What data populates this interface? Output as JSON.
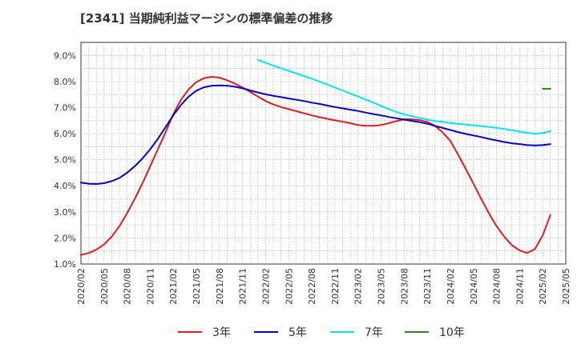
{
  "chart_data": {
    "type": "line",
    "title": "[2341]  当期純利益マージンの標準偏差の推移",
    "xlabel": "",
    "ylabel": "",
    "ylim": [
      1.0,
      9.5
    ],
    "x_ticks": [
      "2020/02",
      "2020/05",
      "2020/08",
      "2020/11",
      "2021/02",
      "2021/05",
      "2021/08",
      "2021/11",
      "2022/02",
      "2022/05",
      "2022/08",
      "2022/11",
      "2023/02",
      "2023/05",
      "2023/08",
      "2023/11",
      "2024/02",
      "2024/05",
      "2024/08",
      "2024/11",
      "2025/02",
      "2025/05"
    ],
    "y_ticks": [
      "1.0%",
      "2.0%",
      "3.0%",
      "4.0%",
      "5.0%",
      "6.0%",
      "7.0%",
      "8.0%",
      "9.0%"
    ],
    "grid": true,
    "legend_position": "bottom",
    "series": [
      {
        "name": "3年",
        "color": "#e41a1c",
        "points": [
          [
            "2020/02",
            1.35
          ],
          [
            "2020/03",
            1.42
          ],
          [
            "2020/04",
            1.55
          ],
          [
            "2020/05",
            1.75
          ],
          [
            "2020/06",
            2.05
          ],
          [
            "2020/07",
            2.45
          ],
          [
            "2020/08",
            2.95
          ],
          [
            "2020/09",
            3.5
          ],
          [
            "2020/10",
            4.1
          ],
          [
            "2020/11",
            4.75
          ],
          [
            "2020/12",
            5.4
          ],
          [
            "2021/01",
            6.05
          ],
          [
            "2021/02",
            6.75
          ],
          [
            "2021/03",
            7.3
          ],
          [
            "2021/04",
            7.7
          ],
          [
            "2021/05",
            7.98
          ],
          [
            "2021/06",
            8.13
          ],
          [
            "2021/07",
            8.18
          ],
          [
            "2021/08",
            8.15
          ],
          [
            "2021/09",
            8.05
          ],
          [
            "2021/10",
            7.92
          ],
          [
            "2021/11",
            7.77
          ],
          [
            "2021/12",
            7.6
          ],
          [
            "2022/01",
            7.42
          ],
          [
            "2022/02",
            7.25
          ],
          [
            "2022/03",
            7.12
          ],
          [
            "2022/04",
            7.02
          ],
          [
            "2022/05",
            6.94
          ],
          [
            "2022/06",
            6.86
          ],
          [
            "2022/07",
            6.78
          ],
          [
            "2022/08",
            6.7
          ],
          [
            "2022/09",
            6.63
          ],
          [
            "2022/10",
            6.57
          ],
          [
            "2022/11",
            6.51
          ],
          [
            "2022/12",
            6.46
          ],
          [
            "2023/01",
            6.4
          ],
          [
            "2023/02",
            6.33
          ],
          [
            "2023/03",
            6.3
          ],
          [
            "2023/04",
            6.3
          ],
          [
            "2023/05",
            6.33
          ],
          [
            "2023/06",
            6.4
          ],
          [
            "2023/07",
            6.48
          ],
          [
            "2023/08",
            6.55
          ],
          [
            "2023/09",
            6.55
          ],
          [
            "2023/10",
            6.52
          ],
          [
            "2023/11",
            6.45
          ],
          [
            "2023/12",
            6.3
          ],
          [
            "2024/01",
            6.05
          ],
          [
            "2024/02",
            5.72
          ],
          [
            "2024/03",
            5.2
          ],
          [
            "2024/04",
            4.65
          ],
          [
            "2024/05",
            4.08
          ],
          [
            "2024/06",
            3.5
          ],
          [
            "2024/07",
            2.95
          ],
          [
            "2024/08",
            2.45
          ],
          [
            "2024/09",
            2.05
          ],
          [
            "2024/10",
            1.72
          ],
          [
            "2024/11",
            1.52
          ],
          [
            "2024/12",
            1.42
          ],
          [
            "2025/01",
            1.58
          ],
          [
            "2025/02",
            2.1
          ],
          [
            "2025/03",
            2.88
          ]
        ]
      },
      {
        "name": "5年",
        "color": "#0000cc",
        "points": [
          [
            "2020/02",
            4.12
          ],
          [
            "2020/03",
            4.08
          ],
          [
            "2020/04",
            4.07
          ],
          [
            "2020/05",
            4.1
          ],
          [
            "2020/06",
            4.18
          ],
          [
            "2020/07",
            4.3
          ],
          [
            "2020/08",
            4.5
          ],
          [
            "2020/09",
            4.75
          ],
          [
            "2020/10",
            5.05
          ],
          [
            "2020/11",
            5.4
          ],
          [
            "2020/12",
            5.8
          ],
          [
            "2021/01",
            6.25
          ],
          [
            "2021/02",
            6.7
          ],
          [
            "2021/03",
            7.1
          ],
          [
            "2021/04",
            7.42
          ],
          [
            "2021/05",
            7.65
          ],
          [
            "2021/06",
            7.78
          ],
          [
            "2021/07",
            7.84
          ],
          [
            "2021/08",
            7.85
          ],
          [
            "2021/09",
            7.84
          ],
          [
            "2021/10",
            7.8
          ],
          [
            "2021/11",
            7.74
          ],
          [
            "2021/12",
            7.66
          ],
          [
            "2022/01",
            7.58
          ],
          [
            "2022/02",
            7.51
          ],
          [
            "2022/03",
            7.45
          ],
          [
            "2022/04",
            7.4
          ],
          [
            "2022/05",
            7.35
          ],
          [
            "2022/06",
            7.3
          ],
          [
            "2022/07",
            7.25
          ],
          [
            "2022/08",
            7.19
          ],
          [
            "2022/09",
            7.14
          ],
          [
            "2022/10",
            7.08
          ],
          [
            "2022/11",
            7.02
          ],
          [
            "2022/12",
            6.97
          ],
          [
            "2023/01",
            6.92
          ],
          [
            "2023/02",
            6.87
          ],
          [
            "2023/03",
            6.81
          ],
          [
            "2023/04",
            6.75
          ],
          [
            "2023/05",
            6.7
          ],
          [
            "2023/06",
            6.64
          ],
          [
            "2023/07",
            6.59
          ],
          [
            "2023/08",
            6.54
          ],
          [
            "2023/09",
            6.49
          ],
          [
            "2023/10",
            6.44
          ],
          [
            "2023/11",
            6.38
          ],
          [
            "2023/12",
            6.3
          ],
          [
            "2024/01",
            6.22
          ],
          [
            "2024/02",
            6.14
          ],
          [
            "2024/03",
            6.06
          ],
          [
            "2024/04",
            5.99
          ],
          [
            "2024/05",
            5.93
          ],
          [
            "2024/06",
            5.87
          ],
          [
            "2024/07",
            5.8
          ],
          [
            "2024/08",
            5.74
          ],
          [
            "2024/09",
            5.68
          ],
          [
            "2024/10",
            5.63
          ],
          [
            "2024/11",
            5.6
          ],
          [
            "2024/12",
            5.56
          ],
          [
            "2025/01",
            5.55
          ],
          [
            "2025/02",
            5.56
          ],
          [
            "2025/03",
            5.6
          ]
        ]
      },
      {
        "name": "7年",
        "color": "#00e5ee",
        "points": [
          [
            "2022/01",
            8.83
          ],
          [
            "2022/02",
            8.72
          ],
          [
            "2022/03",
            8.61
          ],
          [
            "2022/04",
            8.51
          ],
          [
            "2022/05",
            8.41
          ],
          [
            "2022/06",
            8.31
          ],
          [
            "2022/07",
            8.21
          ],
          [
            "2022/08",
            8.11
          ],
          [
            "2022/09",
            8.0
          ],
          [
            "2022/10",
            7.89
          ],
          [
            "2022/11",
            7.77
          ],
          [
            "2022/12",
            7.66
          ],
          [
            "2023/01",
            7.54
          ],
          [
            "2023/02",
            7.43
          ],
          [
            "2023/03",
            7.31
          ],
          [
            "2023/04",
            7.19
          ],
          [
            "2023/05",
            7.06
          ],
          [
            "2023/06",
            6.94
          ],
          [
            "2023/07",
            6.83
          ],
          [
            "2023/08",
            6.74
          ],
          [
            "2023/09",
            6.67
          ],
          [
            "2023/10",
            6.6
          ],
          [
            "2023/11",
            6.54
          ],
          [
            "2023/12",
            6.49
          ],
          [
            "2024/01",
            6.45
          ],
          [
            "2024/02",
            6.41
          ],
          [
            "2024/03",
            6.38
          ],
          [
            "2024/04",
            6.35
          ],
          [
            "2024/05",
            6.32
          ],
          [
            "2024/06",
            6.29
          ],
          [
            "2024/07",
            6.26
          ],
          [
            "2024/08",
            6.22
          ],
          [
            "2024/09",
            6.18
          ],
          [
            "2024/10",
            6.13
          ],
          [
            "2024/11",
            6.08
          ],
          [
            "2024/12",
            6.03
          ],
          [
            "2025/01",
            6.0
          ],
          [
            "2025/02",
            6.02
          ],
          [
            "2025/03",
            6.1
          ]
        ]
      },
      {
        "name": "10年",
        "color": "#228b22",
        "points": [
          [
            "2025/02",
            7.72
          ],
          [
            "2025/03",
            7.72
          ]
        ]
      }
    ]
  }
}
